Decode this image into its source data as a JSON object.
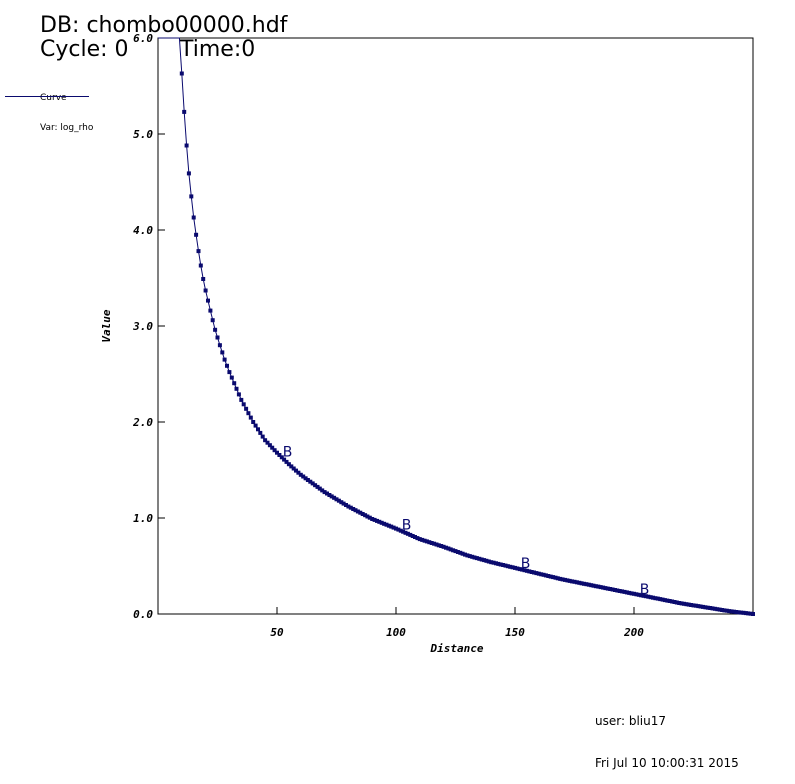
{
  "header": {
    "db": "DB: chombo00000.hdf",
    "cycle": "Cycle: 0",
    "time": "Time:0"
  },
  "legend": {
    "line1": "Curve",
    "line2": "Var: log_rho"
  },
  "footer": {
    "user": "user: bliu17",
    "date": "Fri Jul 10 10:00:31 2015"
  },
  "colors": {
    "curve": "#0a0a6e",
    "axes": "#000000"
  },
  "chart_data": {
    "type": "line",
    "xlabel": "Distance",
    "ylabel": "Value",
    "xlim": [
      0,
      250
    ],
    "ylim": [
      0,
      6
    ],
    "xticks": [
      50,
      100,
      150,
      200
    ],
    "xtick_labels": [
      "50",
      "100",
      "150",
      "200"
    ],
    "yticks": [
      0,
      1,
      2,
      3,
      4,
      5,
      6
    ],
    "ytick_labels": [
      "0.0",
      "1.0",
      "2.0",
      "3.0",
      "4.0",
      "5.0",
      "6.0"
    ],
    "grid": false,
    "series": [
      {
        "name": "log_rho",
        "marker_label": "B",
        "marker_label_x": [
          52,
          102,
          152,
          202
        ],
        "x": [
          0,
          5,
          9,
          10,
          11,
          12,
          13,
          14,
          15,
          16,
          17,
          18,
          19,
          20,
          22,
          24,
          26,
          28,
          30,
          35,
          40,
          45,
          50,
          55,
          60,
          70,
          80,
          90,
          100,
          110,
          120,
          130,
          140,
          150,
          160,
          170,
          180,
          190,
          200,
          210,
          220,
          230,
          240,
          250
        ],
        "y": [
          6.0,
          6.0,
          6.0,
          5.63,
          5.23,
          4.88,
          4.59,
          4.35,
          4.13,
          3.95,
          3.78,
          3.63,
          3.49,
          3.37,
          3.16,
          2.96,
          2.8,
          2.65,
          2.52,
          2.23,
          2.0,
          1.81,
          1.68,
          1.56,
          1.45,
          1.27,
          1.12,
          0.99,
          0.89,
          0.78,
          0.7,
          0.61,
          0.54,
          0.48,
          0.42,
          0.36,
          0.31,
          0.26,
          0.21,
          0.16,
          0.11,
          0.07,
          0.03,
          0.0
        ]
      }
    ]
  }
}
